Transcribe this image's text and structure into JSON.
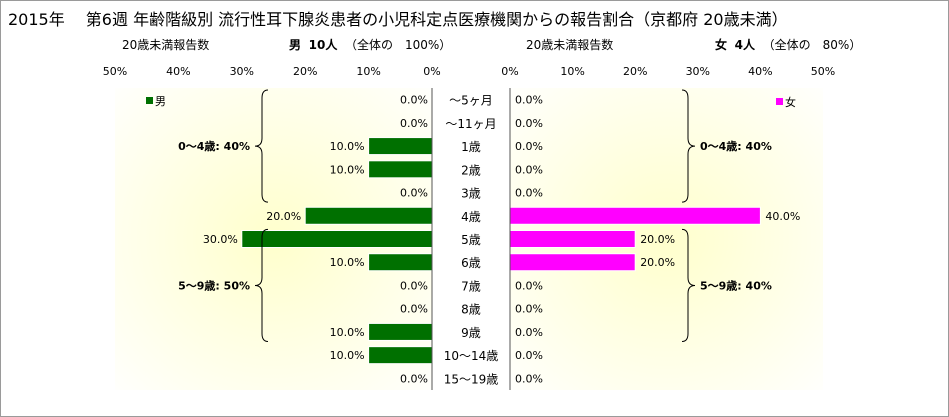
{
  "title": "2015年　 第6週 年齢階級別 流行性耳下腺炎患者の小児科定点医療機関からの報告割合（京都府 20歳未満）",
  "male_header": {
    "left": "20歳未満報告数",
    "sex": "男",
    "count": "10人",
    "total": "（全体の　100%）"
  },
  "female_header": {
    "left": "20歳未満報告数",
    "sex": "女",
    "count": "4人",
    "total": "（全体の　80%）"
  },
  "colors": {
    "male": "#007000",
    "female": "#ff00ff",
    "bg_center": "#ffffcc"
  },
  "chart_data": [
    {
      "type": "bar",
      "orientation": "horizontal",
      "direction": "right-to-left",
      "series": [
        {
          "name": "男",
          "values": [
            0.0,
            0.0,
            10.0,
            10.0,
            0.0,
            20.0,
            30.0,
            10.0,
            0.0,
            0.0,
            10.0,
            10.0,
            0.0
          ]
        }
      ],
      "categories": [
        "～5ヶ月",
        "～11ヶ月",
        "1歳",
        "2歳",
        "3歳",
        "4歳",
        "5歳",
        "6歳",
        "7歳",
        "8歳",
        "9歳",
        "10～14歳",
        "15～19歳"
      ],
      "value_labels": [
        "0.0%",
        "0.0%",
        "10.0%",
        "10.0%",
        "0.0%",
        "20.0%",
        "30.0%",
        "10.0%",
        "0.0%",
        "0.0%",
        "10.0%",
        "10.0%",
        "0.0%"
      ],
      "xlim": [
        0,
        50
      ],
      "x_ticks": [
        "50%",
        "40%",
        "30%",
        "20%",
        "10%",
        "0%"
      ],
      "legend": "top-left",
      "group_labels": [
        {
          "text": "0～4歳: 40%",
          "from": 0,
          "to": 4
        },
        {
          "text": "5～9歳: 50%",
          "from": 6,
          "to": 10
        }
      ]
    },
    {
      "type": "bar",
      "orientation": "horizontal",
      "direction": "left-to-right",
      "series": [
        {
          "name": "女",
          "values": [
            0.0,
            0.0,
            0.0,
            0.0,
            0.0,
            40.0,
            20.0,
            20.0,
            0.0,
            0.0,
            0.0,
            0.0,
            0.0
          ]
        }
      ],
      "categories": [
        "～5ヶ月",
        "～11ヶ月",
        "1歳",
        "2歳",
        "3歳",
        "4歳",
        "5歳",
        "6歳",
        "7歳",
        "8歳",
        "9歳",
        "10～14歳",
        "15～19歳"
      ],
      "value_labels": [
        "0.0%",
        "0.0%",
        "0.0%",
        "0.0%",
        "0.0%",
        "40.0%",
        "20.0%",
        "20.0%",
        "0.0%",
        "0.0%",
        "0.0%",
        "0.0%",
        "0.0%"
      ],
      "xlim": [
        0,
        50
      ],
      "x_ticks": [
        "0%",
        "10%",
        "20%",
        "30%",
        "40%",
        "50%"
      ],
      "legend": "top-right",
      "group_labels": [
        {
          "text": "0～4歳: 40%",
          "from": 0,
          "to": 4
        },
        {
          "text": "5～9歳: 40%",
          "from": 6,
          "to": 10
        }
      ]
    }
  ]
}
